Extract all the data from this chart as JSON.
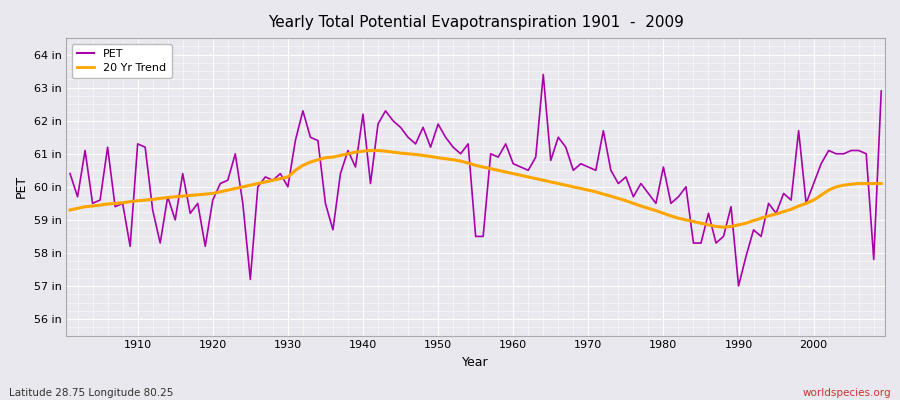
{
  "title": "Yearly Total Potential Evapotranspiration 1901  -  2009",
  "xlabel": "Year",
  "ylabel": "PET",
  "lat_lon_label": "Latitude 28.75 Longitude 80.25",
  "credit": "worldspecies.org",
  "pet_color": "#aa00aa",
  "trend_color": "#FFA500",
  "bg_color": "#e8e8ee",
  "grid_color": "#ffffff",
  "years": [
    1901,
    1902,
    1903,
    1904,
    1905,
    1906,
    1907,
    1908,
    1909,
    1910,
    1911,
    1912,
    1913,
    1914,
    1915,
    1916,
    1917,
    1918,
    1919,
    1920,
    1921,
    1922,
    1923,
    1924,
    1925,
    1926,
    1927,
    1928,
    1929,
    1930,
    1931,
    1932,
    1933,
    1934,
    1935,
    1936,
    1937,
    1938,
    1939,
    1940,
    1941,
    1942,
    1943,
    1944,
    1945,
    1946,
    1947,
    1948,
    1949,
    1950,
    1951,
    1952,
    1953,
    1954,
    1955,
    1956,
    1957,
    1958,
    1959,
    1960,
    1961,
    1962,
    1963,
    1964,
    1965,
    1966,
    1967,
    1968,
    1969,
    1970,
    1971,
    1972,
    1973,
    1974,
    1975,
    1976,
    1977,
    1978,
    1979,
    1980,
    1981,
    1982,
    1983,
    1984,
    1985,
    1986,
    1987,
    1988,
    1989,
    1990,
    1991,
    1992,
    1993,
    1994,
    1995,
    1996,
    1997,
    1998,
    1999,
    2000,
    2001,
    2002,
    2003,
    2004,
    2005,
    2006,
    2007,
    2008,
    2009
  ],
  "pet": [
    60.4,
    59.7,
    61.1,
    59.5,
    59.6,
    61.2,
    59.4,
    59.5,
    58.2,
    61.3,
    61.2,
    59.3,
    58.3,
    59.7,
    59.0,
    60.4,
    59.2,
    59.5,
    58.2,
    59.6,
    60.1,
    60.2,
    61.0,
    59.5,
    57.2,
    60.0,
    60.3,
    60.2,
    60.4,
    60.0,
    61.4,
    62.3,
    61.5,
    61.4,
    59.5,
    58.7,
    60.4,
    61.1,
    60.6,
    62.2,
    60.1,
    61.9,
    62.3,
    62.0,
    61.8,
    61.5,
    61.3,
    61.8,
    61.2,
    61.9,
    61.5,
    61.2,
    61.0,
    61.3,
    58.5,
    58.5,
    61.0,
    60.9,
    61.3,
    60.7,
    60.6,
    60.5,
    60.9,
    63.4,
    60.8,
    61.5,
    61.2,
    60.5,
    60.7,
    60.6,
    60.5,
    61.7,
    60.5,
    60.1,
    60.3,
    59.7,
    60.1,
    59.8,
    59.5,
    60.6,
    59.5,
    59.7,
    60.0,
    58.3,
    58.3,
    59.2,
    58.3,
    58.5,
    59.4,
    57.0,
    57.9,
    58.7,
    58.5,
    59.5,
    59.2,
    59.8,
    59.6,
    61.7,
    59.5,
    60.1,
    60.7,
    61.1,
    61.0,
    61.0,
    61.1,
    61.1,
    61.0,
    57.8,
    62.9
  ],
  "trend": [
    59.3,
    59.35,
    59.4,
    59.42,
    59.45,
    59.48,
    59.5,
    59.52,
    59.55,
    59.58,
    59.6,
    59.62,
    59.65,
    59.68,
    59.7,
    59.72,
    59.74,
    59.76,
    59.78,
    59.8,
    59.85,
    59.9,
    59.95,
    60.0,
    60.05,
    60.1,
    60.15,
    60.2,
    60.25,
    60.3,
    60.5,
    60.65,
    60.75,
    60.82,
    60.88,
    60.9,
    60.95,
    61.0,
    61.05,
    61.08,
    61.1,
    61.1,
    61.08,
    61.05,
    61.02,
    61.0,
    60.98,
    60.95,
    60.92,
    60.88,
    60.85,
    60.82,
    60.78,
    60.72,
    60.65,
    60.6,
    60.55,
    60.5,
    60.45,
    60.4,
    60.35,
    60.3,
    60.25,
    60.2,
    60.15,
    60.1,
    60.05,
    60.0,
    59.95,
    59.9,
    59.85,
    59.78,
    59.72,
    59.65,
    59.58,
    59.5,
    59.42,
    59.35,
    59.28,
    59.2,
    59.12,
    59.05,
    59.0,
    58.95,
    58.9,
    58.85,
    58.8,
    58.78,
    58.8,
    58.85,
    58.9,
    58.98,
    59.05,
    59.12,
    59.18,
    59.25,
    59.32,
    59.42,
    59.5,
    59.6,
    59.75,
    59.9,
    60.0,
    60.05,
    60.08,
    60.1,
    60.1,
    60.1,
    60.1
  ],
  "ylim": [
    55.5,
    64.5
  ],
  "yticks": [
    56,
    57,
    58,
    59,
    60,
    61,
    62,
    63,
    64
  ],
  "xticks": [
    1910,
    1920,
    1930,
    1940,
    1950,
    1960,
    1970,
    1980,
    1990,
    2000
  ]
}
